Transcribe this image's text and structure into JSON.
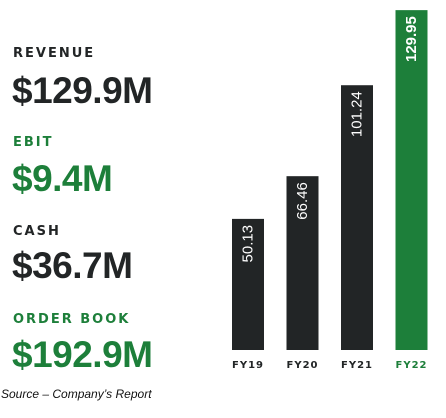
{
  "metrics": {
    "revenue": {
      "label": "REVENUE",
      "value": "$129.9M"
    },
    "ebit": {
      "label": "EBIT",
      "value": "$9.4M"
    },
    "cash": {
      "label": "CASH",
      "value": "$36.7M"
    },
    "order_book": {
      "label": "ORDER BOOK",
      "value": "$192.9M"
    }
  },
  "colors": {
    "dark": "#222526",
    "green": "#1d7f3a"
  },
  "source": "Source – Company’s Report",
  "chart_data": {
    "type": "bar",
    "categories": [
      "FY19",
      "FY20",
      "FY21",
      "FY22"
    ],
    "values": [
      50.13,
      66.46,
      101.24,
      129.95
    ],
    "value_labels": [
      "50.13",
      "66.46",
      "101.24",
      "129.95"
    ],
    "highlight_index": 3,
    "ylim": [
      0,
      130
    ],
    "grid": false,
    "axes_visible": false
  }
}
